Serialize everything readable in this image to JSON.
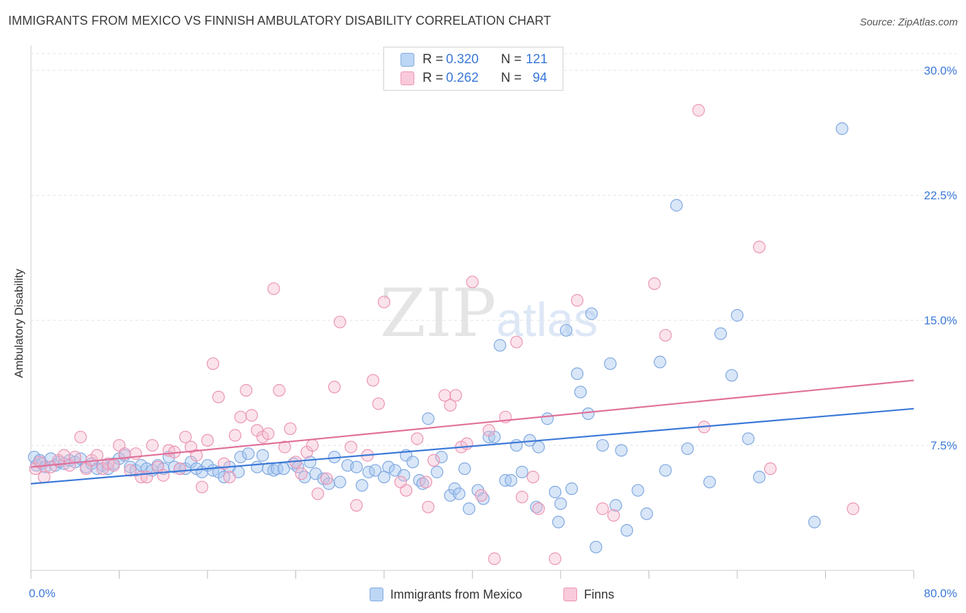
{
  "header": {
    "title": "IMMIGRANTS FROM MEXICO VS FINNISH AMBULATORY DISABILITY CORRELATION CHART",
    "source": "Source: ZipAtlas.com"
  },
  "watermark": {
    "part1": "ZIP",
    "part2": "atlas"
  },
  "legend_top": {
    "rows": [
      {
        "r_label": "R = ",
        "r_value": "0.320",
        "n_label": "N = ",
        "n_value": "121",
        "color": "#a8c8f0"
      },
      {
        "r_label": "R = ",
        "r_value": "0.262",
        "n_label": "N = ",
        "n_value": "94",
        "color": "#f5b8cc"
      }
    ]
  },
  "legend_bottom": {
    "items": [
      {
        "label": "Immigrants from Mexico",
        "color": "#a8c8f0"
      },
      {
        "label": "Finns",
        "color": "#f5b8cc"
      }
    ]
  },
  "chart_data": {
    "type": "scatter",
    "title": "IMMIGRANTS FROM MEXICO VS FINNISH AMBULATORY DISABILITY CORRELATION CHART",
    "xlabel": "",
    "ylabel": "Ambulatory Disability",
    "xlim": [
      0,
      80
    ],
    "ylim": [
      0,
      31
    ],
    "x_tick_labels": [
      "0.0%",
      "80.0%"
    ],
    "y_ticks": [
      7.5,
      15.0,
      22.5,
      30.0
    ],
    "y_tick_labels": [
      "7.5%",
      "15.0%",
      "22.5%",
      "30.0%"
    ],
    "grid": "horizontal dashed",
    "legend_placement": "top-center",
    "colors": {
      "blue": "#3a78d8",
      "pink": "#e0709a",
      "blue_fill": "#a8c8f0",
      "pink_fill": "#f5b8cc"
    },
    "series": [
      {
        "name": "Immigrants from Mexico",
        "r": 0.32,
        "n": 121,
        "trend": {
          "x": [
            0,
            80
          ],
          "y": [
            5.2,
            9.7
          ]
        },
        "points": [
          [
            0.3,
            6.8
          ],
          [
            0.5,
            6.3
          ],
          [
            0.8,
            6.6
          ],
          [
            1.0,
            6.4
          ],
          [
            1.3,
            6.2
          ],
          [
            1.8,
            6.7
          ],
          [
            2.2,
            6.3
          ],
          [
            2.6,
            6.5
          ],
          [
            3.0,
            6.4
          ],
          [
            3.5,
            6.6
          ],
          [
            4.0,
            6.5
          ],
          [
            4.5,
            6.7
          ],
          [
            5.0,
            6.2
          ],
          [
            5.5,
            6.4
          ],
          [
            6.0,
            6.1
          ],
          [
            6.5,
            6.3
          ],
          [
            7.0,
            6.1
          ],
          [
            7.5,
            6.4
          ],
          [
            8.0,
            6.7
          ],
          [
            8.5,
            6.9
          ],
          [
            9.0,
            6.2
          ],
          [
            9.5,
            6.0
          ],
          [
            10.0,
            6.3
          ],
          [
            10.5,
            6.1
          ],
          [
            11.0,
            6.0
          ],
          [
            11.5,
            6.3
          ],
          [
            12.0,
            6.1
          ],
          [
            12.5,
            6.8
          ],
          [
            13.0,
            6.2
          ],
          [
            13.5,
            6.1
          ],
          [
            14.0,
            6.1
          ],
          [
            14.5,
            6.5
          ],
          [
            15.0,
            6.1
          ],
          [
            15.5,
            5.9
          ],
          [
            16.0,
            6.3
          ],
          [
            16.5,
            6.0
          ],
          [
            17.0,
            5.9
          ],
          [
            17.5,
            5.6
          ],
          [
            18.0,
            6.2
          ],
          [
            18.8,
            5.9
          ],
          [
            19.0,
            6.8
          ],
          [
            19.7,
            7.0
          ],
          [
            20.5,
            6.2
          ],
          [
            21.0,
            6.9
          ],
          [
            21.5,
            6.1
          ],
          [
            22.0,
            6.0
          ],
          [
            22.3,
            6.1
          ],
          [
            22.9,
            6.1
          ],
          [
            23.8,
            6.4
          ],
          [
            24.2,
            6.2
          ],
          [
            24.8,
            5.6
          ],
          [
            25.3,
            6.5
          ],
          [
            25.8,
            5.8
          ],
          [
            26.5,
            5.5
          ],
          [
            27.0,
            5.2
          ],
          [
            27.5,
            6.8
          ],
          [
            28.0,
            5.3
          ],
          [
            28.7,
            6.3
          ],
          [
            29.5,
            6.2
          ],
          [
            30.0,
            5.1
          ],
          [
            30.6,
            5.9
          ],
          [
            31.2,
            6.0
          ],
          [
            32.0,
            5.6
          ],
          [
            32.4,
            6.2
          ],
          [
            33.0,
            6.0
          ],
          [
            33.8,
            5.7
          ],
          [
            34.0,
            6.9
          ],
          [
            34.6,
            6.5
          ],
          [
            35.2,
            5.4
          ],
          [
            35.5,
            5.2
          ],
          [
            36.0,
            9.1
          ],
          [
            36.8,
            5.9
          ],
          [
            37.2,
            6.8
          ],
          [
            38.0,
            4.5
          ],
          [
            38.4,
            4.9
          ],
          [
            38.8,
            4.6
          ],
          [
            39.3,
            6.1
          ],
          [
            39.7,
            3.7
          ],
          [
            40.5,
            4.8
          ],
          [
            41.0,
            4.3
          ],
          [
            41.5,
            8.0
          ],
          [
            42.0,
            8.0
          ],
          [
            42.5,
            13.5
          ],
          [
            43.0,
            5.4
          ],
          [
            43.5,
            5.4
          ],
          [
            44.0,
            7.5
          ],
          [
            44.5,
            5.9
          ],
          [
            45.2,
            7.8
          ],
          [
            45.8,
            3.8
          ],
          [
            46.0,
            7.4
          ],
          [
            46.8,
            9.1
          ],
          [
            47.5,
            4.7
          ],
          [
            47.8,
            2.9
          ],
          [
            48.0,
            4.0
          ],
          [
            48.5,
            14.4
          ],
          [
            49.0,
            4.9
          ],
          [
            49.5,
            11.8
          ],
          [
            49.8,
            10.7
          ],
          [
            50.5,
            9.4
          ],
          [
            50.8,
            15.4
          ],
          [
            51.2,
            1.4
          ],
          [
            51.8,
            7.5
          ],
          [
            52.5,
            12.4
          ],
          [
            53.0,
            3.9
          ],
          [
            53.5,
            7.2
          ],
          [
            54.0,
            2.4
          ],
          [
            55.0,
            4.8
          ],
          [
            55.8,
            3.4
          ],
          [
            57.0,
            12.5
          ],
          [
            57.5,
            6.0
          ],
          [
            58.5,
            21.9
          ],
          [
            59.5,
            7.3
          ],
          [
            61.5,
            5.3
          ],
          [
            62.5,
            14.2
          ],
          [
            63.5,
            11.7
          ],
          [
            64.0,
            15.3
          ],
          [
            65.0,
            7.9
          ],
          [
            66.0,
            5.6
          ],
          [
            71.0,
            2.9
          ],
          [
            73.5,
            26.5
          ]
        ]
      },
      {
        "name": "Finns",
        "r": 0.262,
        "n": 94,
        "trend": {
          "x": [
            0,
            80
          ],
          "y": [
            6.2,
            11.4
          ]
        },
        "points": [
          [
            0.4,
            6.1
          ],
          [
            0.8,
            6.5
          ],
          [
            1.2,
            5.6
          ],
          [
            1.8,
            6.2
          ],
          [
            2.5,
            6.6
          ],
          [
            3.0,
            6.9
          ],
          [
            3.5,
            6.3
          ],
          [
            4.0,
            6.8
          ],
          [
            4.5,
            8.0
          ],
          [
            5.0,
            6.1
          ],
          [
            5.5,
            6.6
          ],
          [
            6.0,
            6.9
          ],
          [
            6.5,
            6.1
          ],
          [
            7.0,
            6.4
          ],
          [
            7.5,
            6.3
          ],
          [
            8.0,
            7.5
          ],
          [
            8.5,
            7.0
          ],
          [
            9.0,
            6.0
          ],
          [
            9.5,
            7.0
          ],
          [
            10.0,
            5.6
          ],
          [
            10.5,
            5.6
          ],
          [
            11.0,
            7.5
          ],
          [
            11.5,
            6.2
          ],
          [
            12.0,
            5.7
          ],
          [
            12.5,
            7.2
          ],
          [
            13.0,
            7.1
          ],
          [
            13.5,
            6.1
          ],
          [
            14.0,
            8.0
          ],
          [
            14.5,
            7.4
          ],
          [
            15.0,
            6.9
          ],
          [
            15.5,
            5.0
          ],
          [
            16.0,
            7.8
          ],
          [
            16.5,
            12.4
          ],
          [
            17.0,
            10.4
          ],
          [
            17.5,
            6.4
          ],
          [
            18.0,
            5.6
          ],
          [
            18.5,
            8.1
          ],
          [
            19.0,
            9.2
          ],
          [
            19.5,
            10.8
          ],
          [
            20.0,
            9.3
          ],
          [
            20.5,
            8.4
          ],
          [
            21.0,
            8.0
          ],
          [
            21.5,
            8.2
          ],
          [
            22.0,
            16.9
          ],
          [
            22.5,
            10.8
          ],
          [
            23.0,
            7.4
          ],
          [
            23.5,
            8.5
          ],
          [
            24.0,
            6.5
          ],
          [
            24.5,
            5.8
          ],
          [
            25.0,
            7.1
          ],
          [
            25.5,
            7.5
          ],
          [
            26.0,
            4.6
          ],
          [
            26.8,
            5.5
          ],
          [
            27.5,
            11.0
          ],
          [
            28.0,
            14.9
          ],
          [
            29.0,
            7.4
          ],
          [
            29.5,
            3.9
          ],
          [
            30.5,
            6.9
          ],
          [
            31.0,
            11.4
          ],
          [
            31.5,
            10.0
          ],
          [
            32.0,
            16.1
          ],
          [
            33.5,
            5.3
          ],
          [
            34.0,
            4.8
          ],
          [
            35.0,
            7.9
          ],
          [
            35.8,
            5.3
          ],
          [
            36.0,
            3.8
          ],
          [
            36.5,
            6.6
          ],
          [
            37.5,
            10.5
          ],
          [
            38.0,
            9.9
          ],
          [
            38.5,
            10.5
          ],
          [
            39.0,
            7.4
          ],
          [
            39.5,
            7.6
          ],
          [
            40.0,
            17.3
          ],
          [
            40.8,
            4.5
          ],
          [
            41.5,
            8.4
          ],
          [
            42.0,
            0.7
          ],
          [
            43.0,
            9.2
          ],
          [
            44.0,
            13.7
          ],
          [
            44.5,
            4.4
          ],
          [
            45.5,
            5.6
          ],
          [
            46.0,
            3.7
          ],
          [
            47.5,
            0.7
          ],
          [
            49.5,
            16.2
          ],
          [
            51.8,
            3.7
          ],
          [
            52.8,
            3.3
          ],
          [
            56.5,
            17.2
          ],
          [
            57.5,
            14.1
          ],
          [
            60.5,
            27.6
          ],
          [
            61.0,
            8.6
          ],
          [
            66.0,
            19.4
          ],
          [
            67.0,
            6.1
          ],
          [
            74.5,
            3.7
          ]
        ]
      }
    ]
  }
}
